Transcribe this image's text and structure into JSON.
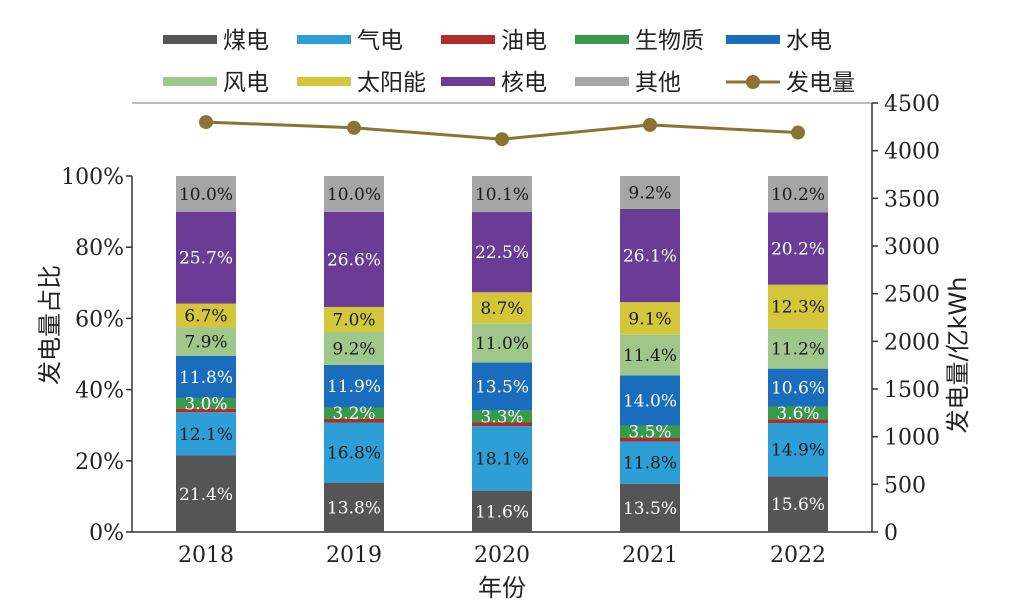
{
  "chart_data": {
    "type": "bar",
    "stacked": true,
    "categories": [
      "2018",
      "2019",
      "2020",
      "2021",
      "2022"
    ],
    "xlabel": "年份",
    "ylabel": "发电量占比",
    "y2label": "发电量/亿kWh",
    "ylim": [
      0,
      100
    ],
    "y2lim": [
      0,
      4500
    ],
    "yticks": [
      "0%",
      "20%",
      "40%",
      "60%",
      "80%",
      "100%"
    ],
    "y2ticks": [
      "0",
      "500",
      "1000",
      "1500",
      "2000",
      "2500",
      "3000",
      "3500",
      "4000",
      "4500"
    ],
    "series": [
      {
        "name": "煤电",
        "color": "#555555",
        "label_color": "#ffffff",
        "values": [
          21.4,
          13.8,
          11.6,
          13.5,
          15.6
        ],
        "labels": [
          "21.4%",
          "13.8%",
          "11.6%",
          "13.5%",
          "15.6%"
        ]
      },
      {
        "name": "气电",
        "color": "#2e9fd6",
        "label_color": "#1a1a1a",
        "values": [
          12.1,
          16.8,
          18.1,
          11.8,
          14.9
        ],
        "labels": [
          "12.1%",
          "16.8%",
          "18.1%",
          "11.8%",
          "14.9%"
        ]
      },
      {
        "name": "油电",
        "color": "#b22a2a",
        "label_color": "#1a1a1a",
        "values": [
          1.0,
          1.0,
          1.0,
          1.0,
          1.0
        ],
        "labels": []
      },
      {
        "name": "生物质",
        "color": "#3a9a4b",
        "label_color": "#ffffff",
        "values": [
          3.0,
          3.2,
          3.3,
          3.5,
          3.6
        ],
        "labels": [
          "3.0%",
          "3.2%",
          "3.3%",
          "3.5%",
          "3.6%"
        ]
      },
      {
        "name": "水电",
        "color": "#1a6dbc",
        "label_color": "#ffffff",
        "values": [
          11.8,
          11.9,
          13.5,
          14.0,
          10.6
        ],
        "labels": [
          "11.8%",
          "11.9%",
          "13.5%",
          "14.0%",
          "10.6%"
        ]
      },
      {
        "name": "风电",
        "color": "#9fc78c",
        "label_color": "#1a1a1a",
        "values": [
          7.9,
          9.2,
          11.0,
          11.4,
          11.2
        ],
        "labels": [
          "7.9%",
          "9.2%",
          "11.0%",
          "11.4%",
          "11.2%"
        ]
      },
      {
        "name": "太阳能",
        "color": "#d4c63a",
        "label_color": "#1a1a1a",
        "values": [
          6.7,
          7.0,
          8.7,
          9.1,
          12.3
        ],
        "labels": [
          "6.7%",
          "7.0%",
          "8.7%",
          "9.1%",
          "12.3%"
        ]
      },
      {
        "name": "核电",
        "color": "#6b3c96",
        "label_color": "#ffffff",
        "values": [
          25.7,
          26.6,
          22.5,
          26.1,
          20.2
        ],
        "labels": [
          "25.7%",
          "26.6%",
          "22.5%",
          "26.1%",
          "20.2%"
        ]
      },
      {
        "name": "其他",
        "color": "#a5a5a5",
        "label_color": "#1a1a1a",
        "values": [
          10.0,
          10.0,
          10.1,
          9.2,
          10.2
        ],
        "labels": [
          "10.0%",
          "10.0%",
          "10.1%",
          "9.2%",
          "10.2%"
        ]
      }
    ],
    "line_series": {
      "name": "发电量",
      "color": "#8b7332",
      "values": [
        4300,
        4240,
        4120,
        4270,
        4190
      ]
    }
  }
}
